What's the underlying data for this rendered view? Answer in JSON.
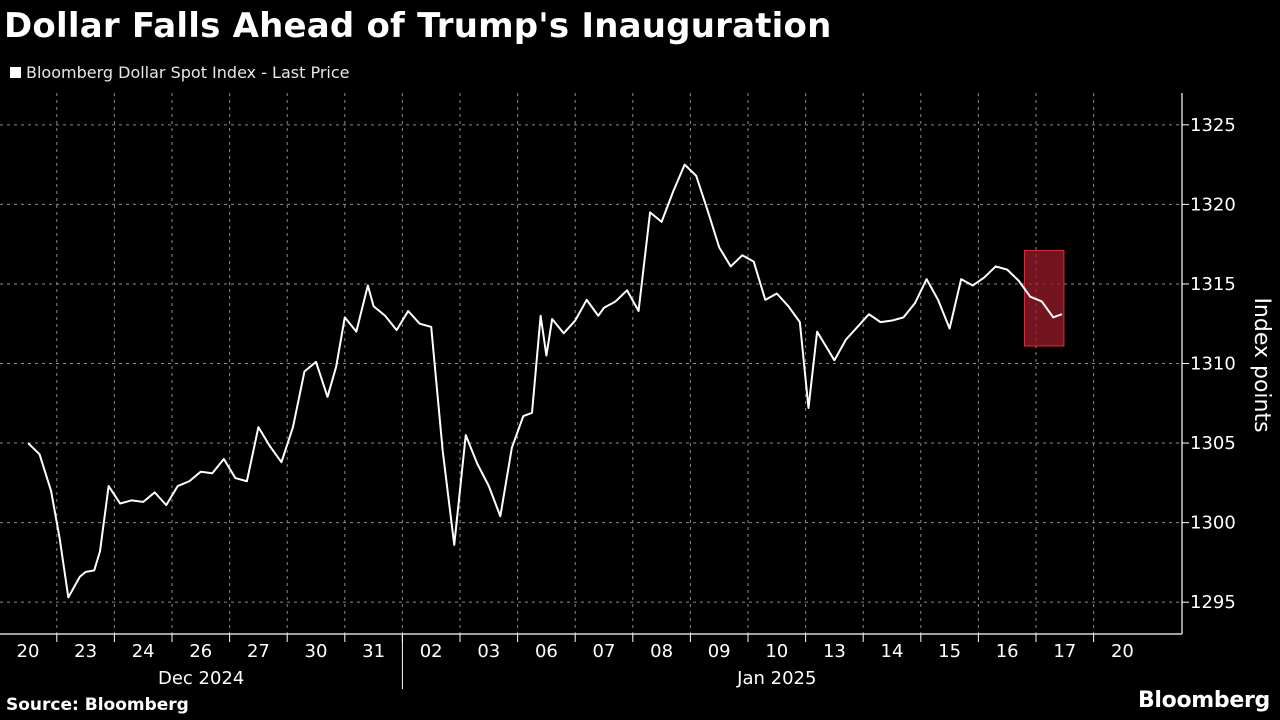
{
  "title": "Dollar Falls Ahead of Trump's Inauguration",
  "legend": "Bloomberg Dollar Spot Index - Last Price",
  "source": "Source: Bloomberg",
  "brand": "Bloomberg",
  "colors": {
    "background": "#000000",
    "line": "#ffffff",
    "grid": "#8a8a8a",
    "highlight": "#9b1b2a"
  },
  "chart_data": {
    "type": "line",
    "title": "Dollar Falls Ahead of Trump's Inauguration",
    "ylabel": "Index points",
    "xlabel": "",
    "ylim": [
      1293,
      1327
    ],
    "yticks": [
      1295,
      1300,
      1305,
      1310,
      1315,
      1320,
      1325
    ],
    "grid": true,
    "x_day_labels": [
      "20",
      "23",
      "24",
      "26",
      "27",
      "30",
      "31",
      "02",
      "03",
      "06",
      "07",
      "08",
      "09",
      "10",
      "13",
      "14",
      "15",
      "16",
      "17",
      "20"
    ],
    "month_labels": [
      "Dec 2024",
      "Jan 2025"
    ],
    "series": [
      {
        "name": "Bloomberg Dollar Spot Index - Last Price",
        "x": [
          0,
          0.2,
          0.4,
          0.55,
          0.7,
          0.9,
          1.0,
          1.15,
          1.25,
          1.4,
          1.6,
          1.8,
          2.0,
          2.2,
          2.4,
          2.6,
          2.8,
          3.0,
          3.2,
          3.4,
          3.6,
          3.8,
          4.0,
          4.2,
          4.4,
          4.6,
          4.8,
          5.0,
          5.2,
          5.35,
          5.5,
          5.7,
          5.9,
          6.0,
          6.2,
          6.4,
          6.6,
          6.8,
          7.0,
          7.2,
          7.4,
          7.6,
          7.8,
          8.0,
          8.2,
          8.4,
          8.6,
          8.75,
          8.9,
          9.0,
          9.1,
          9.3,
          9.5,
          9.7,
          9.9,
          10.0,
          10.2,
          10.4,
          10.6,
          10.8,
          11.0,
          11.2,
          11.4,
          11.6,
          11.8,
          12.0,
          12.2,
          12.4,
          12.6,
          12.8,
          13.0,
          13.2,
          13.4,
          13.55,
          13.7,
          13.9,
          14.0,
          14.2,
          14.4,
          14.6,
          14.8,
          15.0,
          15.2,
          15.4,
          15.6,
          15.8,
          16.0,
          16.2,
          16.4,
          16.6,
          16.8,
          17.0,
          17.2,
          17.4,
          17.6,
          17.8,
          17.95
        ],
        "values": [
          1305.0,
          1304.3,
          1302.0,
          1299.0,
          1295.3,
          1296.6,
          1296.9,
          1297.0,
          1298.2,
          1302.3,
          1301.2,
          1301.4,
          1301.3,
          1301.9,
          1301.1,
          1302.3,
          1302.6,
          1303.2,
          1303.1,
          1304.0,
          1302.8,
          1302.6,
          1306.0,
          1304.8,
          1303.8,
          1306.0,
          1309.5,
          1310.1,
          1307.9,
          1309.8,
          1312.9,
          1312.0,
          1314.9,
          1313.6,
          1313.0,
          1312.1,
          1313.3,
          1312.5,
          1312.3,
          1304.5,
          1298.6,
          1305.5,
          1303.7,
          1302.3,
          1300.4,
          1304.7,
          1306.7,
          1306.9,
          1313.0,
          1310.5,
          1312.8,
          1311.9,
          1312.7,
          1314.0,
          1313.0,
          1313.5,
          1313.9,
          1314.6,
          1313.3,
          1319.5,
          1318.9,
          1320.8,
          1322.5,
          1321.8,
          1319.6,
          1317.3,
          1316.1,
          1316.8,
          1316.4,
          1314.0,
          1314.4,
          1313.6,
          1312.6,
          1307.2,
          1312.0,
          1310.8,
          1310.2,
          1311.5,
          1312.3,
          1313.1,
          1312.6,
          1312.7,
          1312.9,
          1313.8,
          1315.3,
          1314.0,
          1312.2,
          1315.3,
          1314.9,
          1315.4,
          1316.1,
          1315.9,
          1315.2,
          1314.2,
          1313.9,
          1312.9,
          1313.1
        ]
      }
    ],
    "highlight_range": {
      "x_start": 17.3,
      "x_end": 17.95,
      "y_start": 1311.1,
      "y_end": 1317.1
    }
  }
}
